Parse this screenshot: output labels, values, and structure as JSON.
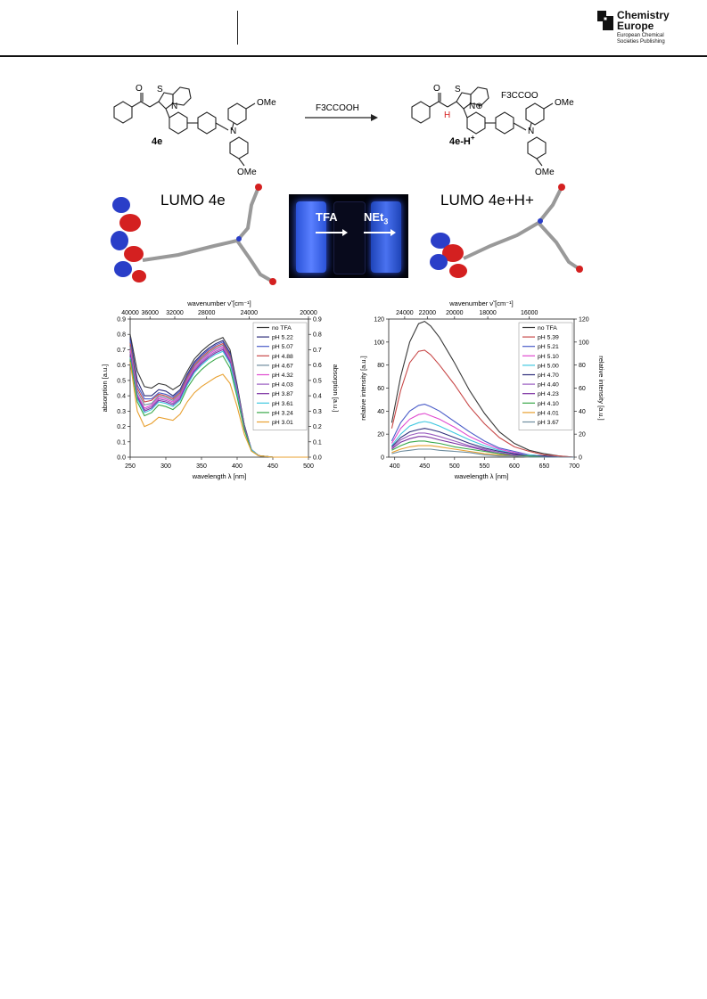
{
  "header": {
    "brand_line1": "Chemistry",
    "brand_line2": "Europe",
    "brand_sub1": "European Chemical",
    "brand_sub2": "Societies Publishing",
    "brand_color": "#111111"
  },
  "scheme": {
    "reactant_label": "4e",
    "product_label": "4e-H",
    "product_label_sup": "+",
    "reagent_label": "F3CCOOH",
    "counterion_label": "F3CCOO",
    "ome_label": "OMe",
    "h_label": "H",
    "lumo_left": "LUMO 4e",
    "lumo_right": "LUMO 4e+H+",
    "photo_tfa": "TFA",
    "photo_net3": "NEt3",
    "proton_color": "#d52020"
  },
  "chart_data": [
    {
      "type": "line",
      "xlabel": "wavelength λ [nm]",
      "ylabel": "absorption [a.u.]",
      "ylabel_right": "absorption [a.u.]",
      "top_axis_label": "wavenumber ν̃ [cm⁻¹]",
      "xlim": [
        250,
        500
      ],
      "ylim": [
        0,
        0.9
      ],
      "x_ticks": [
        250,
        300,
        350,
        400,
        450,
        500
      ],
      "y_ticks": [
        0.0,
        0.1,
        0.2,
        0.3,
        0.4,
        0.5,
        0.6,
        0.7,
        0.8,
        0.9
      ],
      "top_ticks": [
        "40000",
        "36000",
        "32000",
        "28000",
        "24000",
        "20000"
      ],
      "top_tick_wavenumbers": [
        40000,
        36000,
        32000,
        28000,
        24000,
        20000
      ],
      "legend_position": "top-right",
      "x": [
        250,
        260,
        270,
        280,
        290,
        300,
        310,
        320,
        330,
        340,
        350,
        360,
        370,
        380,
        390,
        400,
        410,
        420,
        430,
        450,
        500
      ],
      "series": [
        {
          "name": "no TFA",
          "color": "#3a3a3a",
          "values": [
            0.8,
            0.56,
            0.46,
            0.45,
            0.48,
            0.47,
            0.44,
            0.47,
            0.56,
            0.64,
            0.69,
            0.73,
            0.76,
            0.78,
            0.7,
            0.47,
            0.21,
            0.05,
            0.01,
            0.0,
            0.0
          ]
        },
        {
          "name": "pH 5.22",
          "color": "#2d2d7a",
          "values": [
            0.78,
            0.5,
            0.4,
            0.4,
            0.44,
            0.43,
            0.4,
            0.44,
            0.54,
            0.62,
            0.67,
            0.71,
            0.74,
            0.76,
            0.68,
            0.46,
            0.21,
            0.05,
            0.01,
            0.0,
            0.0
          ]
        },
        {
          "name": "pH 5.07",
          "color": "#4a5cc8",
          "values": [
            0.76,
            0.47,
            0.38,
            0.38,
            0.42,
            0.41,
            0.39,
            0.43,
            0.53,
            0.61,
            0.66,
            0.7,
            0.73,
            0.75,
            0.67,
            0.45,
            0.2,
            0.05,
            0.01,
            0.0,
            0.0
          ]
        },
        {
          "name": "pH 4.88",
          "color": "#c84848",
          "values": [
            0.74,
            0.45,
            0.36,
            0.37,
            0.41,
            0.4,
            0.38,
            0.42,
            0.52,
            0.6,
            0.65,
            0.69,
            0.72,
            0.74,
            0.66,
            0.44,
            0.2,
            0.05,
            0.01,
            0.0,
            0.0
          ]
        },
        {
          "name": "pH 4.67",
          "color": "#6e8c9e",
          "values": [
            0.72,
            0.43,
            0.34,
            0.35,
            0.4,
            0.39,
            0.37,
            0.41,
            0.51,
            0.59,
            0.64,
            0.68,
            0.71,
            0.73,
            0.65,
            0.44,
            0.2,
            0.05,
            0.01,
            0.0,
            0.0
          ]
        },
        {
          "name": "pH 4.32",
          "color": "#e04ad0",
          "values": [
            0.7,
            0.41,
            0.32,
            0.34,
            0.39,
            0.38,
            0.36,
            0.4,
            0.5,
            0.58,
            0.63,
            0.67,
            0.7,
            0.72,
            0.64,
            0.43,
            0.19,
            0.05,
            0.01,
            0.0,
            0.0
          ]
        },
        {
          "name": "pH 4.03",
          "color": "#9a5cc0",
          "values": [
            0.68,
            0.4,
            0.31,
            0.33,
            0.38,
            0.37,
            0.35,
            0.39,
            0.49,
            0.57,
            0.62,
            0.66,
            0.69,
            0.71,
            0.63,
            0.42,
            0.19,
            0.05,
            0.01,
            0.0,
            0.0
          ]
        },
        {
          "name": "pH 3.87",
          "color": "#7a2ea0",
          "values": [
            0.67,
            0.39,
            0.3,
            0.32,
            0.37,
            0.36,
            0.34,
            0.38,
            0.48,
            0.56,
            0.61,
            0.65,
            0.68,
            0.7,
            0.62,
            0.42,
            0.19,
            0.05,
            0.01,
            0.0,
            0.0
          ]
        },
        {
          "name": "pH 3.61",
          "color": "#40c8e0",
          "values": [
            0.65,
            0.38,
            0.29,
            0.31,
            0.36,
            0.35,
            0.33,
            0.37,
            0.47,
            0.55,
            0.6,
            0.64,
            0.67,
            0.69,
            0.61,
            0.41,
            0.18,
            0.05,
            0.01,
            0.0,
            0.0
          ]
        },
        {
          "name": "pH 3.24",
          "color": "#3aa84a",
          "values": [
            0.64,
            0.36,
            0.27,
            0.29,
            0.34,
            0.33,
            0.31,
            0.35,
            0.45,
            0.52,
            0.57,
            0.61,
            0.64,
            0.66,
            0.58,
            0.39,
            0.18,
            0.04,
            0.01,
            0.0,
            0.0
          ]
        },
        {
          "name": "pH 3.01",
          "color": "#e8a030",
          "values": [
            0.62,
            0.3,
            0.2,
            0.22,
            0.26,
            0.25,
            0.24,
            0.28,
            0.36,
            0.42,
            0.46,
            0.49,
            0.52,
            0.54,
            0.48,
            0.33,
            0.15,
            0.04,
            0.01,
            0.0,
            0.0
          ]
        }
      ]
    },
    {
      "type": "line",
      "xlabel": "wavelength λ [nm]",
      "ylabel": "relative intensity [a.u.]",
      "ylabel_right": "relative intensity [a.u.]",
      "top_axis_label": "wavenumber ν̃ [cm⁻¹]",
      "xlim": [
        390,
        700
      ],
      "ylim": [
        0,
        120
      ],
      "x_ticks": [
        400,
        450,
        500,
        550,
        600,
        650,
        700
      ],
      "y_ticks": [
        0,
        20,
        40,
        60,
        80,
        100,
        120
      ],
      "top_ticks": [
        "24000",
        "22000",
        "20000",
        "18000",
        "16000"
      ],
      "top_tick_wavenumbers": [
        24000,
        22000,
        20000,
        18000,
        16000
      ],
      "legend_position": "top-right",
      "x": [
        395,
        410,
        425,
        440,
        450,
        460,
        475,
        500,
        525,
        550,
        575,
        600,
        625,
        650,
        675,
        700
      ],
      "series": [
        {
          "name": "no TFA",
          "color": "#3a3a3a",
          "values": [
            30,
            70,
            100,
            116,
            118,
            114,
            104,
            82,
            58,
            38,
            22,
            12,
            6,
            3,
            1,
            0
          ]
        },
        {
          "name": "pH 5.39",
          "color": "#c84848",
          "values": [
            25,
            58,
            82,
            92,
            93,
            89,
            80,
            63,
            44,
            29,
            17,
            9,
            5,
            2,
            1,
            0
          ]
        },
        {
          "name": "pH 5.21",
          "color": "#4a5cc8",
          "values": [
            14,
            30,
            40,
            45,
            46,
            44,
            40,
            31,
            22,
            14,
            8,
            5,
            2,
            1,
            0,
            0
          ]
        },
        {
          "name": "pH 5.10",
          "color": "#e04ad0",
          "values": [
            12,
            25,
            33,
            37,
            38,
            36,
            33,
            26,
            18,
            12,
            7,
            4,
            2,
            1,
            0,
            0
          ]
        },
        {
          "name": "pH 5.00",
          "color": "#40c8e0",
          "values": [
            10,
            20,
            27,
            30,
            31,
            30,
            27,
            21,
            15,
            10,
            6,
            3,
            2,
            1,
            0,
            0
          ]
        },
        {
          "name": "pH 4.70",
          "color": "#2d2d7a",
          "values": [
            9,
            17,
            22,
            24,
            25,
            24,
            22,
            17,
            12,
            8,
            5,
            3,
            1,
            1,
            0,
            0
          ]
        },
        {
          "name": "pH 4.40",
          "color": "#9a5cc0",
          "values": [
            8,
            15,
            19,
            21,
            21,
            20,
            18,
            14,
            10,
            7,
            4,
            2,
            1,
            0,
            0,
            0
          ]
        },
        {
          "name": "pH 4.23",
          "color": "#7a2ea0",
          "values": [
            7,
            13,
            16,
            18,
            18,
            17,
            15,
            12,
            9,
            6,
            3,
            2,
            1,
            0,
            0,
            0
          ]
        },
        {
          "name": "pH 4.10",
          "color": "#3aa84a",
          "values": [
            6,
            10,
            13,
            14,
            14,
            13,
            12,
            9,
            7,
            5,
            3,
            1,
            1,
            0,
            0,
            0
          ]
        },
        {
          "name": "pH 4.01",
          "color": "#e8a030",
          "values": [
            4,
            7,
            9,
            10,
            10,
            10,
            9,
            7,
            5,
            3,
            2,
            1,
            0,
            0,
            0,
            0
          ]
        },
        {
          "name": "pH 3.67",
          "color": "#6e8c9e",
          "values": [
            3,
            5,
            6,
            7,
            7,
            7,
            6,
            5,
            4,
            2,
            1,
            1,
            0,
            0,
            0,
            0
          ]
        }
      ]
    }
  ]
}
